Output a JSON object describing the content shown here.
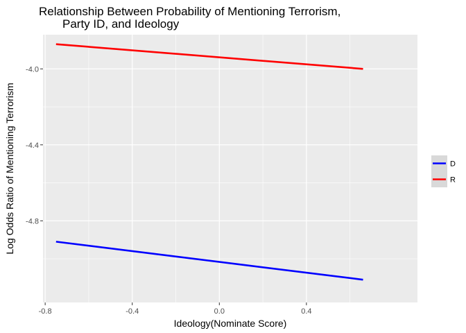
{
  "chart_data": {
    "type": "line",
    "title_lines": [
      "Relationship Between Probability of Mentioning Terrorism,",
      "Party ID, and Ideology"
    ],
    "xlabel": "Ideology(Nominate Score)",
    "ylabel": "Log Odds Ratio of Mentioning Terrorism",
    "xlim": [
      -0.81,
      0.91
    ],
    "ylim": [
      -5.23,
      -3.82
    ],
    "x_ticks": [
      -0.8,
      -0.4,
      0.0,
      0.4
    ],
    "x_tick_labels": [
      "-0.8",
      "-0.4",
      "0.0",
      "0.4"
    ],
    "y_ticks": [
      -4.0,
      -4.4,
      -4.8
    ],
    "y_tick_labels": [
      "-4.0",
      "-4.4",
      "-4.8"
    ],
    "grid": true,
    "legend_position": "right",
    "series": [
      {
        "name": "D",
        "color": "#0000ff",
        "x": [
          -0.75,
          0.66
        ],
        "y": [
          -4.91,
          -5.11
        ]
      },
      {
        "name": "R",
        "color": "#ff0000",
        "x": [
          -0.75,
          0.66
        ],
        "y": [
          -3.87,
          -4.0
        ]
      }
    ],
    "colors": {
      "panel": "#ebebeb",
      "grid": "#ffffff",
      "legend_key": "#d9d9d9"
    }
  }
}
